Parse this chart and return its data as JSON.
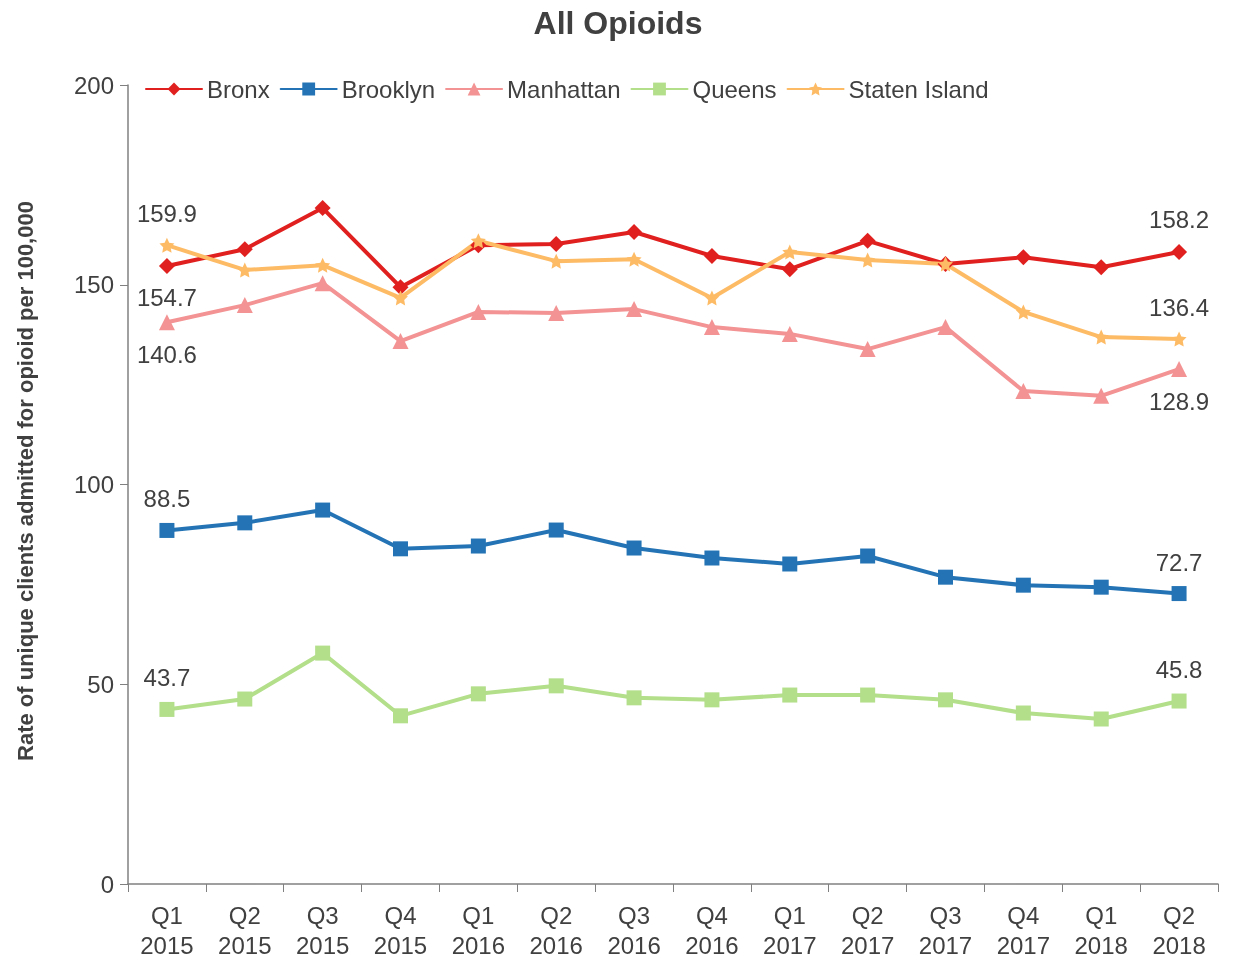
{
  "chart_data": {
    "type": "line",
    "title": "All Opioids",
    "ylabel": "Rate of unique clients admitted for opioid per 100,000",
    "categories": [
      "Q1\n2015",
      "Q2\n2015",
      "Q3\n2015",
      "Q4\n2015",
      "Q1\n2016",
      "Q2\n2016",
      "Q3\n2016",
      "Q4\n2016",
      "Q1\n2017",
      "Q2\n2017",
      "Q3\n2017",
      "Q4\n2017",
      "Q1\n2018",
      "Q2\n2018"
    ],
    "series": [
      {
        "name": "Bronx",
        "color": "#e0201f",
        "marker": "diamond",
        "values": [
          154.7,
          158.9,
          169.2,
          149.4,
          159.9,
          160.2,
          163.2,
          157.2,
          153.9,
          161.0,
          155.2,
          156.9,
          154.4,
          158.2
        ],
        "value_labels": [
          "154.7",
          null,
          null,
          null,
          null,
          null,
          null,
          null,
          null,
          null,
          null,
          null,
          null,
          "158.2"
        ]
      },
      {
        "name": "Brooklyn",
        "color": "#2474b5",
        "marker": "square",
        "values": [
          88.5,
          90.4,
          93.6,
          83.9,
          84.6,
          88.6,
          84.1,
          81.6,
          80.1,
          82.1,
          76.8,
          74.8,
          74.3,
          72.7
        ],
        "value_labels": [
          "88.5",
          null,
          null,
          null,
          null,
          null,
          null,
          null,
          null,
          null,
          null,
          null,
          null,
          "72.7"
        ]
      },
      {
        "name": "Manhattan",
        "color": "#f39393",
        "marker": "triangle",
        "values": [
          140.6,
          144.9,
          150.4,
          135.9,
          143.2,
          142.9,
          143.9,
          139.4,
          137.7,
          133.9,
          139.4,
          123.4,
          122.2,
          128.9
        ],
        "value_labels": [
          "140.6",
          null,
          null,
          null,
          null,
          null,
          null,
          null,
          null,
          null,
          null,
          null,
          null,
          "128.9"
        ]
      },
      {
        "name": "Queens",
        "color": "#b3de8a",
        "marker": "square",
        "values": [
          43.7,
          46.3,
          57.8,
          42.1,
          47.6,
          49.6,
          46.6,
          46.1,
          47.3,
          47.3,
          46.1,
          42.8,
          41.3,
          45.8
        ],
        "value_labels": [
          "43.7",
          null,
          null,
          null,
          null,
          null,
          null,
          null,
          null,
          null,
          null,
          null,
          null,
          "45.8"
        ]
      },
      {
        "name": "Staten Island",
        "color": "#fdbb66",
        "marker": "star",
        "values": [
          159.9,
          153.7,
          154.9,
          146.7,
          161.0,
          155.9,
          156.4,
          146.7,
          158.2,
          156.2,
          155.2,
          143.2,
          136.9,
          136.4
        ],
        "value_labels": [
          "159.9",
          null,
          null,
          null,
          null,
          null,
          null,
          null,
          null,
          null,
          null,
          null,
          null,
          "136.4"
        ]
      }
    ],
    "ylim": [
      0,
      200
    ],
    "yticks": [
      0,
      50,
      100,
      150,
      200
    ],
    "grid": false,
    "legend": "top"
  }
}
